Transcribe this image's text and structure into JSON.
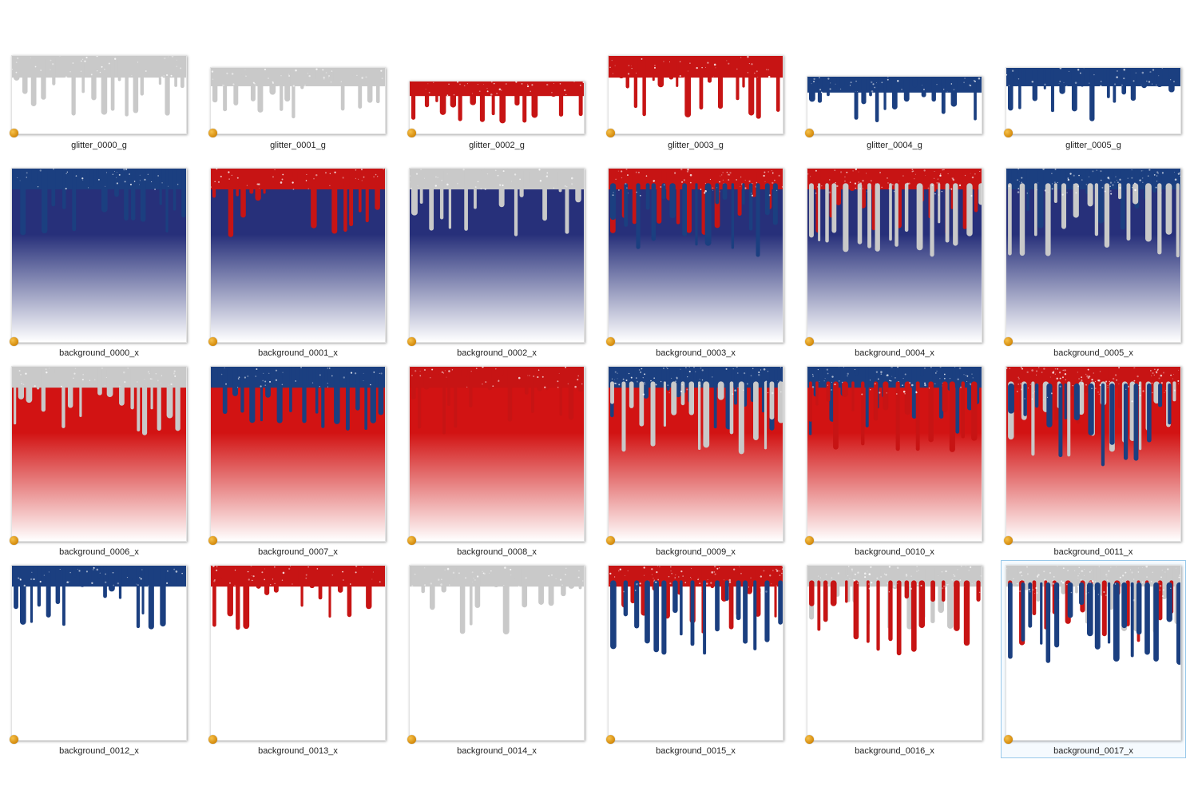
{
  "colors": {
    "silver": "#c9c9c9",
    "red": "#c71414",
    "blue": "#1b3f80",
    "navy": "#27307a",
    "bg_red": "#d21313",
    "badge": "#e39a12",
    "selection": "#99c9ea"
  },
  "files": [
    {
      "name": "glitter_0000_g",
      "kind": "glitter",
      "top": [
        "silver"
      ],
      "bg": "white",
      "icon": "file-thumbnail"
    },
    {
      "name": "glitter_0001_g",
      "kind": "glitter",
      "top": [
        "silver"
      ],
      "bg": "white",
      "icon": "file-thumbnail"
    },
    {
      "name": "glitter_0002_g",
      "kind": "glitter",
      "top": [
        "red"
      ],
      "bg": "white",
      "icon": "file-thumbnail"
    },
    {
      "name": "glitter_0003_g",
      "kind": "glitter",
      "top": [
        "red"
      ],
      "bg": "white",
      "icon": "file-thumbnail"
    },
    {
      "name": "glitter_0004_g",
      "kind": "glitter",
      "top": [
        "blue"
      ],
      "bg": "white",
      "icon": "file-thumbnail"
    },
    {
      "name": "glitter_0005_g",
      "kind": "glitter",
      "top": [
        "blue"
      ],
      "bg": "white",
      "icon": "file-thumbnail"
    },
    {
      "name": "background_0000_x",
      "kind": "background",
      "top": [
        "blue"
      ],
      "bg": "navy",
      "icon": "file-thumbnail"
    },
    {
      "name": "background_0001_x",
      "kind": "background",
      "top": [
        "red"
      ],
      "bg": "navy",
      "icon": "file-thumbnail"
    },
    {
      "name": "background_0002_x",
      "kind": "background",
      "top": [
        "silver"
      ],
      "bg": "navy",
      "icon": "file-thumbnail"
    },
    {
      "name": "background_0003_x",
      "kind": "background",
      "top": [
        "red",
        "blue"
      ],
      "bg": "navy",
      "icon": "file-thumbnail"
    },
    {
      "name": "background_0004_x",
      "kind": "background",
      "top": [
        "red",
        "silver"
      ],
      "bg": "navy",
      "icon": "file-thumbnail"
    },
    {
      "name": "background_0005_x",
      "kind": "background",
      "top": [
        "blue",
        "silver"
      ],
      "bg": "navy",
      "icon": "file-thumbnail"
    },
    {
      "name": "background_0006_x",
      "kind": "background",
      "top": [
        "silver"
      ],
      "bg": "red",
      "icon": "file-thumbnail"
    },
    {
      "name": "background_0007_x",
      "kind": "background",
      "top": [
        "blue"
      ],
      "bg": "red",
      "icon": "file-thumbnail"
    },
    {
      "name": "background_0008_x",
      "kind": "background",
      "top": [
        "red"
      ],
      "bg": "red",
      "icon": "file-thumbnail"
    },
    {
      "name": "background_0009_x",
      "kind": "background",
      "top": [
        "blue",
        "silver"
      ],
      "bg": "red",
      "icon": "file-thumbnail"
    },
    {
      "name": "background_0010_x",
      "kind": "background",
      "top": [
        "blue",
        "red"
      ],
      "bg": "red",
      "icon": "file-thumbnail"
    },
    {
      "name": "background_0011_x",
      "kind": "background",
      "top": [
        "red",
        "silver",
        "blue"
      ],
      "bg": "red",
      "icon": "file-thumbnail"
    },
    {
      "name": "background_0012_x",
      "kind": "background",
      "top": [
        "blue"
      ],
      "bg": "white",
      "icon": "file-thumbnail"
    },
    {
      "name": "background_0013_x",
      "kind": "background",
      "top": [
        "red"
      ],
      "bg": "white",
      "icon": "file-thumbnail"
    },
    {
      "name": "background_0014_x",
      "kind": "background",
      "top": [
        "silver"
      ],
      "bg": "white",
      "icon": "file-thumbnail"
    },
    {
      "name": "background_0015_x",
      "kind": "background",
      "top": [
        "red",
        "blue"
      ],
      "bg": "white",
      "icon": "file-thumbnail"
    },
    {
      "name": "background_0016_x",
      "kind": "background",
      "top": [
        "silver",
        "red"
      ],
      "bg": "white",
      "icon": "file-thumbnail"
    },
    {
      "name": "background_0017_x",
      "kind": "background",
      "top": [
        "silver",
        "red",
        "blue"
      ],
      "bg": "white",
      "icon": "file-thumbnail",
      "selected": true
    }
  ]
}
